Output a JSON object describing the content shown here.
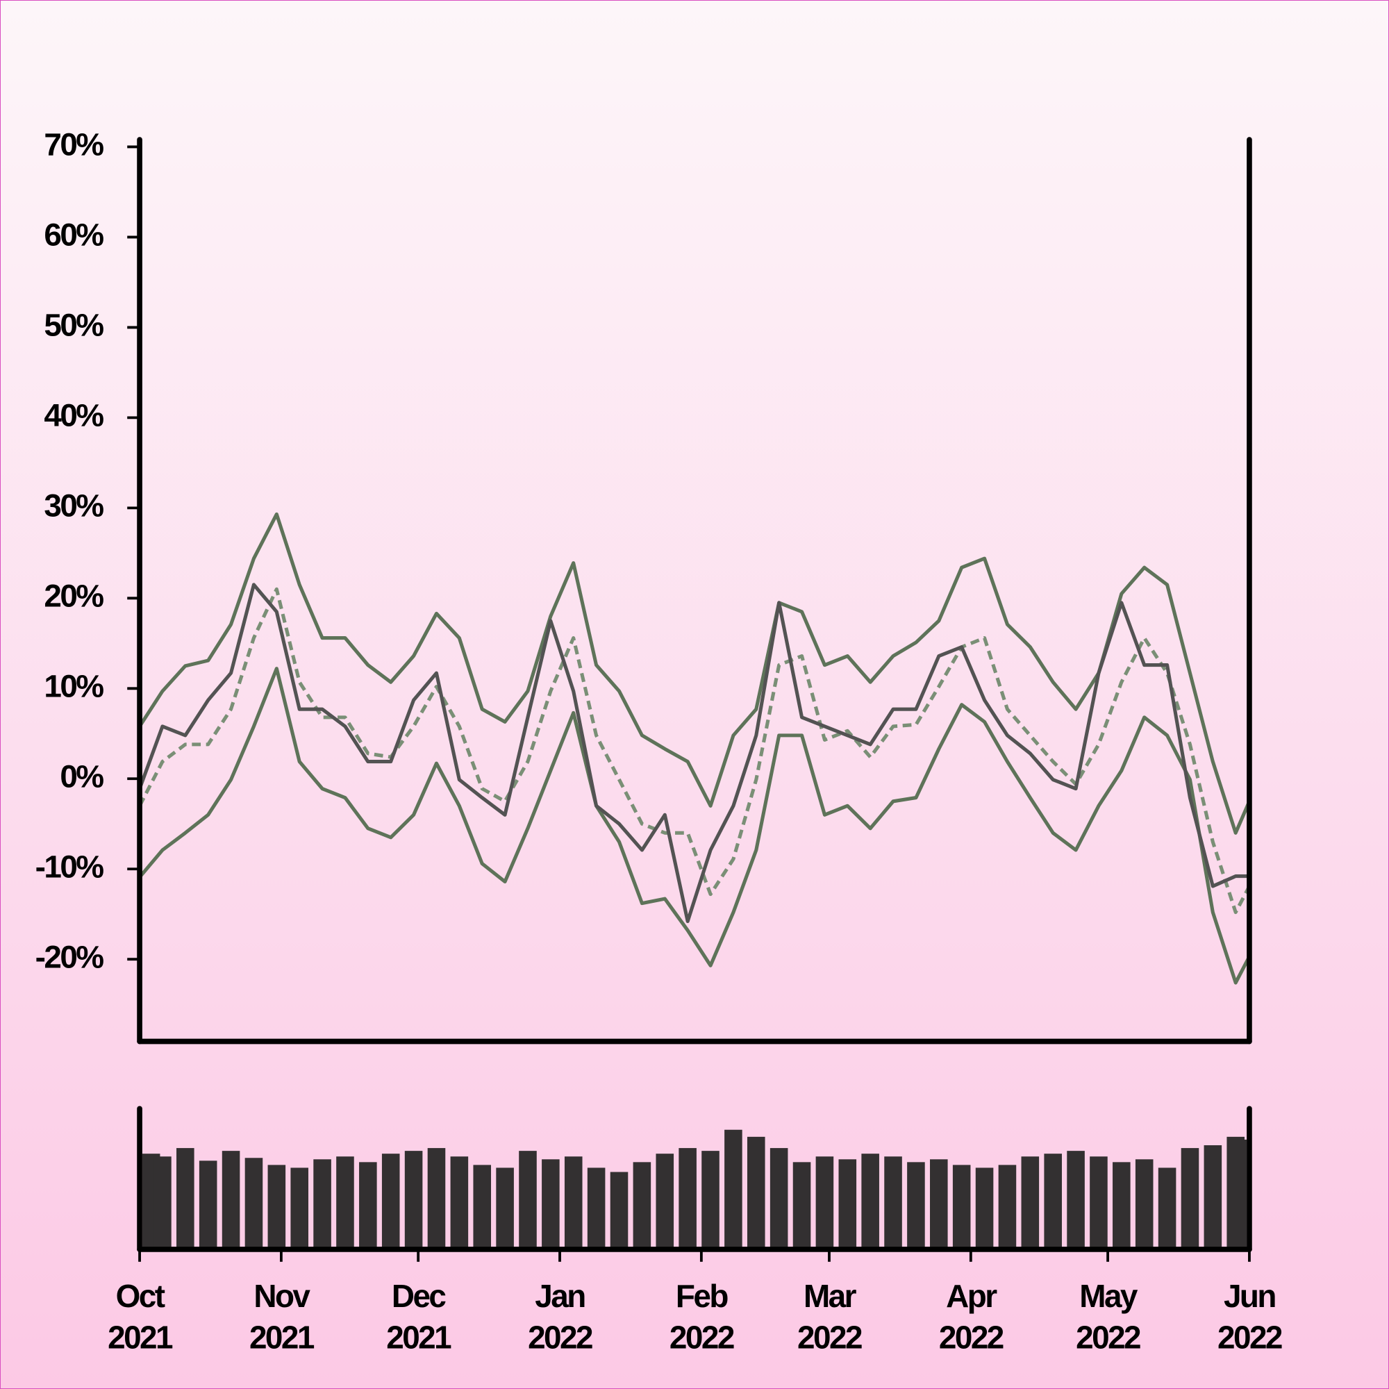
{
  "chart_data": [
    {
      "type": "line",
      "x": [
        "2021-10-01",
        "2021-10-06",
        "2021-10-11",
        "2021-10-16",
        "2021-10-21",
        "2021-10-26",
        "2021-10-31",
        "2021-11-05",
        "2021-11-10",
        "2021-11-15",
        "2021-11-20",
        "2021-11-25",
        "2021-11-30",
        "2021-12-05",
        "2021-12-10",
        "2021-12-15",
        "2021-12-20",
        "2021-12-25",
        "2021-12-30",
        "2022-01-04",
        "2022-01-09",
        "2022-01-14",
        "2022-01-19",
        "2022-01-24",
        "2022-01-29",
        "2022-02-03",
        "2022-02-08",
        "2022-02-13",
        "2022-02-18",
        "2022-02-23",
        "2022-02-28",
        "2022-03-05",
        "2022-03-10",
        "2022-03-15",
        "2022-03-20",
        "2022-03-25",
        "2022-03-30",
        "2022-04-04",
        "2022-04-09",
        "2022-04-14",
        "2022-04-19",
        "2022-04-24",
        "2022-04-29",
        "2022-05-04",
        "2022-05-09",
        "2022-05-14",
        "2022-05-19",
        "2022-05-24",
        "2022-05-29",
        "2022-06-01"
      ],
      "series": [
        {
          "color": "#5e7359",
          "values": [
            5.8,
            9.7,
            12.5,
            13.1,
            17.1,
            24.4,
            29.3,
            21.5,
            15.6,
            15.6,
            12.6,
            10.7,
            13.6,
            18.3,
            15.6,
            7.7,
            6.3,
            9.7,
            18.0,
            23.9,
            12.6,
            9.7,
            4.8,
            3.3,
            1.9,
            -3.0,
            4.8,
            7.7,
            19.5,
            18.5,
            12.6,
            13.6,
            10.7,
            13.6,
            15.1,
            17.5,
            23.4,
            24.4,
            17.1,
            14.6,
            10.7,
            7.7,
            11.7,
            20.5,
            23.4,
            21.5,
            11.7,
            1.9,
            -6.0,
            -2.5
          ]
        },
        {
          "color": "#5e7359",
          "values": [
            -10.9,
            -7.9,
            -6.0,
            -4.0,
            -0.1,
            5.8,
            12.2,
            1.9,
            -1.1,
            -2.1,
            -5.5,
            -6.5,
            -4.0,
            1.7,
            -3.0,
            -9.4,
            -11.4,
            -5.5,
            0.9,
            7.3,
            -3.0,
            -7.0,
            -13.8,
            -13.3,
            -16.8,
            -20.7,
            -14.8,
            -7.9,
            4.8,
            4.8,
            -4.0,
            -3.0,
            -5.5,
            -2.5,
            -2.1,
            3.3,
            8.2,
            6.3,
            1.9,
            -2.1,
            -6.0,
            -7.9,
            -3.0,
            0.9,
            6.8,
            4.8,
            -0.1,
            -14.8,
            -22.6,
            -19.7
          ]
        },
        {
          "color": "#7a8f76",
          "dashed": true,
          "values": [
            -3.0,
            1.9,
            3.8,
            3.8,
            7.7,
            15.6,
            21.0,
            10.7,
            6.8,
            6.8,
            2.8,
            2.4,
            5.8,
            10.2,
            5.8,
            -1.1,
            -2.5,
            1.9,
            9.7,
            15.6,
            4.8,
            -0.1,
            -5.0,
            -6.0,
            -6.0,
            -12.8,
            -8.9,
            -0.1,
            12.6,
            13.6,
            4.3,
            5.3,
            2.4,
            5.8,
            6.0,
            10.2,
            14.6,
            15.6,
            7.7,
            4.8,
            1.9,
            -0.6,
            3.8,
            10.7,
            15.6,
            11.7,
            3.8,
            -7.0,
            -14.8,
            -11.9
          ]
        },
        {
          "color": "#535353",
          "values": [
            -1.1,
            5.8,
            4.8,
            8.7,
            11.7,
            21.5,
            18.5,
            7.7,
            7.7,
            5.8,
            1.9,
            1.9,
            8.7,
            11.7,
            -0.1,
            -2.1,
            -4.0,
            6.8,
            17.5,
            9.7,
            -3.0,
            -5.0,
            -7.9,
            -4.0,
            -15.8,
            -7.9,
            -3.0,
            4.8,
            19.5,
            6.8,
            5.8,
            4.8,
            3.8,
            7.7,
            7.7,
            13.6,
            14.6,
            8.7,
            4.8,
            2.8,
            -0.1,
            -1.1,
            11.7,
            19.5,
            12.6,
            12.6,
            -2.1,
            -11.9,
            -10.8,
            -10.8
          ]
        }
      ],
      "xlim": [
        "2021-10-01",
        "2022-06-01"
      ],
      "ylim": [
        -29.1,
        70.8
      ],
      "yticks": [
        {
          "value": -20,
          "label": "-20%"
        },
        {
          "value": -10,
          "label": "-10%"
        },
        {
          "value": 0,
          "label": "0%"
        },
        {
          "value": 10,
          "label": "10%"
        },
        {
          "value": 20,
          "label": "20%"
        },
        {
          "value": 30,
          "label": "30%"
        },
        {
          "value": 40,
          "label": "40%"
        },
        {
          "value": 50,
          "label": "50%"
        },
        {
          "value": 60,
          "label": "60%"
        },
        {
          "value": 70,
          "label": "70%"
        }
      ]
    },
    {
      "type": "bar",
      "x": [
        "2021-10-01",
        "2021-10-06",
        "2021-10-11",
        "2021-10-16",
        "2021-10-21",
        "2021-10-26",
        "2021-10-31",
        "2021-11-05",
        "2021-11-10",
        "2021-11-15",
        "2021-11-20",
        "2021-11-25",
        "2021-11-30",
        "2021-12-05",
        "2021-12-10",
        "2021-12-15",
        "2021-12-20",
        "2021-12-25",
        "2021-12-30",
        "2022-01-04",
        "2022-01-09",
        "2022-01-14",
        "2022-01-19",
        "2022-01-24",
        "2022-01-29",
        "2022-02-03",
        "2022-02-08",
        "2022-02-13",
        "2022-02-18",
        "2022-02-23",
        "2022-02-28",
        "2022-03-05",
        "2022-03-10",
        "2022-03-15",
        "2022-03-20",
        "2022-03-25",
        "2022-03-30",
        "2022-04-04",
        "2022-04-09",
        "2022-04-14",
        "2022-04-19",
        "2022-04-24",
        "2022-04-29",
        "2022-05-04",
        "2022-05-09",
        "2022-05-14",
        "2022-05-19",
        "2022-05-24",
        "2022-05-29",
        "2022-06-01"
      ],
      "values": [
        68,
        66,
        72,
        63,
        70,
        65,
        60,
        58,
        64,
        66,
        62,
        68,
        70,
        72,
        66,
        60,
        58,
        70,
        64,
        66,
        58,
        55,
        62,
        68,
        72,
        70,
        85,
        80,
        72,
        62,
        66,
        64,
        68,
        66,
        62,
        64,
        60,
        58,
        60,
        66,
        68,
        70,
        66,
        62,
        64,
        58,
        72,
        74,
        80,
        78
      ],
      "color": "#333031",
      "xlim": [
        "2021-10-01",
        "2022-06-01"
      ],
      "ylim": [
        0,
        100
      ],
      "xticks": [
        {
          "value": "2021-10-01",
          "label": "Oct\n2021"
        },
        {
          "value": "2021-11-01",
          "label": "Nov\n2021"
        },
        {
          "value": "2021-12-01",
          "label": "Dec\n2021"
        },
        {
          "value": "2022-01-01",
          "label": "Jan\n2022"
        },
        {
          "value": "2022-02-01",
          "label": "Feb\n2022"
        },
        {
          "value": "2022-03-01",
          "label": "Mar\n2022"
        },
        {
          "value": "2022-04-01",
          "label": "Apr\n2022"
        },
        {
          "value": "2022-05-01",
          "label": "May\n2022"
        },
        {
          "value": "2022-06-01",
          "label": "Jun\n2022"
        }
      ]
    }
  ]
}
